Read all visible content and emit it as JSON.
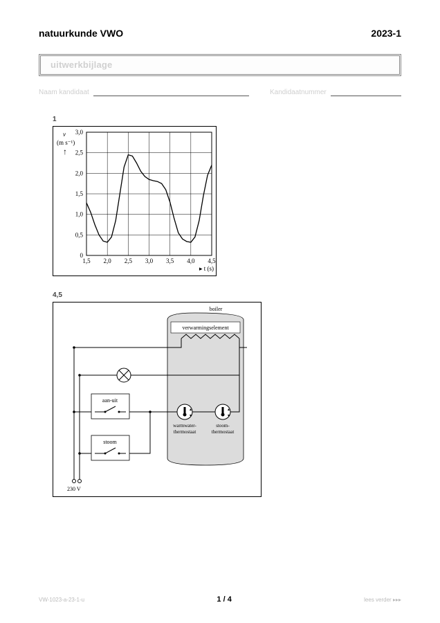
{
  "header": {
    "subject": "natuurkunde VWO",
    "year": "2023-1"
  },
  "banner": {
    "title": "uitwerkbijlage"
  },
  "name_row": {
    "name_label": "Naam kandidaat",
    "number_label": "Kandidaatnummer"
  },
  "figure1": {
    "number": "1",
    "type": "line",
    "ylabel": "v",
    "yunit": "(m s⁻¹)",
    "xlabel": "t (s)",
    "arrow_up": "↑",
    "arrow_right": "▸",
    "xlim": [
      1.5,
      4.5
    ],
    "xtick_step": 0.5,
    "xticks": [
      "1,5",
      "2,0",
      "2,5",
      "3,0",
      "3,5",
      "4,0",
      "4,5"
    ],
    "ylim": [
      0,
      3.0
    ],
    "ytick_step": 0.5,
    "yticks": [
      "0",
      "0,5",
      "1,0",
      "1,5",
      "2,0",
      "2,5",
      "3,0"
    ],
    "data": [
      [
        1.5,
        1.28
      ],
      [
        1.6,
        1.05
      ],
      [
        1.7,
        0.75
      ],
      [
        1.8,
        0.5
      ],
      [
        1.9,
        0.35
      ],
      [
        2.0,
        0.32
      ],
      [
        2.1,
        0.45
      ],
      [
        2.2,
        0.85
      ],
      [
        2.3,
        1.5
      ],
      [
        2.4,
        2.15
      ],
      [
        2.5,
        2.45
      ],
      [
        2.6,
        2.42
      ],
      [
        2.7,
        2.25
      ],
      [
        2.8,
        2.05
      ],
      [
        2.9,
        1.92
      ],
      [
        3.0,
        1.85
      ],
      [
        3.1,
        1.82
      ],
      [
        3.2,
        1.8
      ],
      [
        3.3,
        1.75
      ],
      [
        3.4,
        1.6
      ],
      [
        3.5,
        1.3
      ],
      [
        3.6,
        0.9
      ],
      [
        3.7,
        0.55
      ],
      [
        3.8,
        0.4
      ],
      [
        3.9,
        0.34
      ],
      [
        4.0,
        0.32
      ],
      [
        4.1,
        0.45
      ],
      [
        4.2,
        0.85
      ],
      [
        4.3,
        1.45
      ],
      [
        4.4,
        1.95
      ],
      [
        4.5,
        2.2
      ]
    ],
    "line_color": "#000000",
    "grid_color": "#000000",
    "background_color": "#ffffff",
    "font_size": 9,
    "line_width": 1.3
  },
  "figure2": {
    "number": "4,5",
    "type": "circuit-diagram",
    "labels": {
      "boiler": "boiler",
      "heating": "verwarmingselement",
      "aan_uit": "aan-uit",
      "warmwater": "warmwater-\nthermostaat",
      "stoom_th": "stoom-\nthermostaat",
      "stoom_sw": "stoom",
      "voltage": "230 V"
    },
    "colors": {
      "wire": "#000000",
      "boiler_fill": "#dcdcdc",
      "boiler_stroke": "#000000",
      "switch_box": "#ffffff",
      "background": "#ffffff"
    },
    "font_size": 8,
    "wire_width": 1
  },
  "footer": {
    "left": "VW-1023-a-23-1-u",
    "page": "1 / 4",
    "right": "lees verder ▸▸▸"
  }
}
